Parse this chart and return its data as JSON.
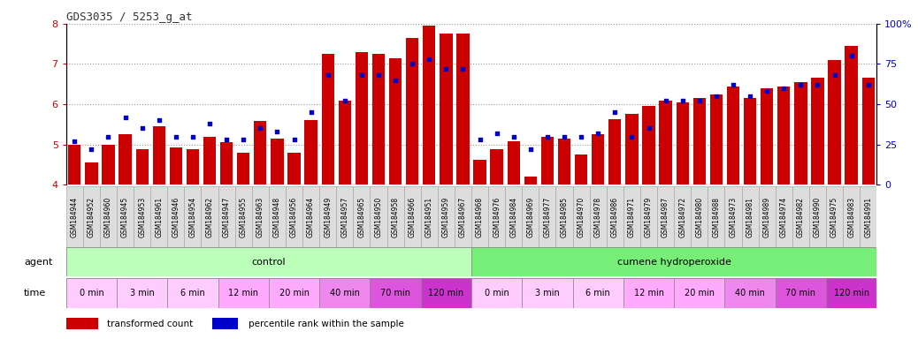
{
  "title": "GDS3035 / 5253_g_at",
  "samples": [
    "GSM184944",
    "GSM184952",
    "GSM184960",
    "GSM184945",
    "GSM184953",
    "GSM184961",
    "GSM184946",
    "GSM184954",
    "GSM184962",
    "GSM184947",
    "GSM184955",
    "GSM184963",
    "GSM184948",
    "GSM184956",
    "GSM184964",
    "GSM184949",
    "GSM184957",
    "GSM184965",
    "GSM184950",
    "GSM184958",
    "GSM184966",
    "GSM184951",
    "GSM184959",
    "GSM184967",
    "GSM184968",
    "GSM184976",
    "GSM184984",
    "GSM184969",
    "GSM184977",
    "GSM184985",
    "GSM184970",
    "GSM184978",
    "GSM184986",
    "GSM184971",
    "GSM184979",
    "GSM184987",
    "GSM184972",
    "GSM184980",
    "GSM184988",
    "GSM184973",
    "GSM184981",
    "GSM184989",
    "GSM184974",
    "GSM184982",
    "GSM184990",
    "GSM184975",
    "GSM184983",
    "GSM184991"
  ],
  "transformed_count": [
    5.0,
    4.55,
    5.0,
    5.25,
    4.88,
    5.45,
    4.92,
    4.88,
    5.2,
    5.05,
    4.8,
    5.58,
    5.15,
    4.8,
    5.6,
    7.25,
    6.1,
    7.3,
    7.25,
    7.15,
    7.65,
    7.95,
    7.75,
    7.75,
    4.62,
    4.88,
    5.08,
    4.2,
    5.18,
    5.15,
    4.75,
    5.25,
    5.62,
    5.75,
    5.95,
    6.1,
    6.05,
    6.15,
    6.25,
    6.45,
    6.15,
    6.4,
    6.45,
    6.55,
    6.65,
    7.1,
    7.45,
    6.65
  ],
  "percentile_rank": [
    27,
    22,
    30,
    42,
    35,
    40,
    30,
    30,
    38,
    28,
    28,
    35,
    33,
    28,
    45,
    68,
    52,
    68,
    68,
    65,
    75,
    78,
    72,
    72,
    28,
    32,
    30,
    22,
    30,
    30,
    30,
    32,
    45,
    30,
    35,
    52,
    52,
    52,
    55,
    62,
    55,
    58,
    60,
    62,
    62,
    68,
    80,
    62
  ],
  "ylim_left": [
    4,
    8
  ],
  "ylim_right": [
    0,
    100
  ],
  "yticks_left": [
    4,
    5,
    6,
    7,
    8
  ],
  "yticks_right": [
    0,
    25,
    50,
    75,
    100
  ],
  "bar_color": "#cc0000",
  "marker_color": "#0000cc",
  "agent_groups": [
    {
      "label": "control",
      "start": 0,
      "end": 24,
      "color": "#bbffbb"
    },
    {
      "label": "cumene hydroperoxide",
      "start": 24,
      "end": 48,
      "color": "#77ee77"
    }
  ],
  "time_groups": [
    {
      "label": "0 min",
      "start": 0,
      "end": 3,
      "color": "#ffccff"
    },
    {
      "label": "3 min",
      "start": 3,
      "end": 6,
      "color": "#ffccff"
    },
    {
      "label": "6 min",
      "start": 6,
      "end": 9,
      "color": "#ffccff"
    },
    {
      "label": "12 min",
      "start": 9,
      "end": 12,
      "color": "#ffaaff"
    },
    {
      "label": "20 min",
      "start": 12,
      "end": 15,
      "color": "#ffaaff"
    },
    {
      "label": "40 min",
      "start": 15,
      "end": 18,
      "color": "#ee88ee"
    },
    {
      "label": "70 min",
      "start": 18,
      "end": 21,
      "color": "#dd55dd"
    },
    {
      "label": "120 min",
      "start": 21,
      "end": 24,
      "color": "#cc33cc"
    },
    {
      "label": "0 min",
      "start": 24,
      "end": 27,
      "color": "#ffccff"
    },
    {
      "label": "3 min",
      "start": 27,
      "end": 30,
      "color": "#ffccff"
    },
    {
      "label": "6 min",
      "start": 30,
      "end": 33,
      "color": "#ffccff"
    },
    {
      "label": "12 min",
      "start": 33,
      "end": 36,
      "color": "#ffaaff"
    },
    {
      "label": "20 min",
      "start": 36,
      "end": 39,
      "color": "#ffaaff"
    },
    {
      "label": "40 min",
      "start": 39,
      "end": 42,
      "color": "#ee88ee"
    },
    {
      "label": "70 min",
      "start": 42,
      "end": 45,
      "color": "#dd55dd"
    },
    {
      "label": "120 min",
      "start": 45,
      "end": 48,
      "color": "#cc33cc"
    }
  ],
  "bg_color": "#ffffff",
  "tick_label_color_left": "#cc0000",
  "tick_label_color_right": "#0000cc",
  "title_color": "#333333",
  "legend_bar_label": "transformed count",
  "legend_marker_label": "percentile rank within the sample",
  "xtick_bg": "#dddddd"
}
